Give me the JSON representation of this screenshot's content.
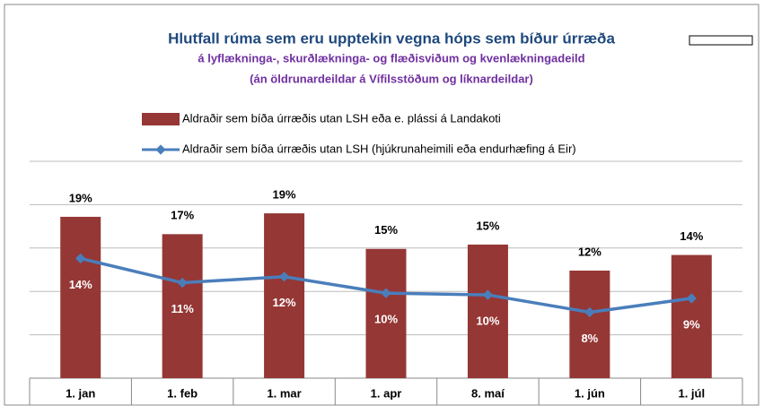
{
  "chart_data": {
    "type": "bar_line",
    "title": "Hlutfall rúma sem eru upptekin  vegna hóps sem bíður úrræða",
    "subtitle": [
      "á lyflækninga-, skurðlækninga- og flæðisviðum og kvenlækningadeild",
      "(án öldrunardeildar  á Vífilsstöðum og líknardeildar)"
    ],
    "categories": [
      "1. jan",
      "1. feb",
      "1. mar",
      "1. apr",
      "8. maí",
      "1. jún",
      "1. júl"
    ],
    "series": [
      {
        "name": "Aldraðir sem bíða úrræðis utan LSH eða e. plássi á Landakoti",
        "type": "bar",
        "color": "#953735",
        "values": [
          18.6,
          16.6,
          19.0,
          14.9,
          15.4,
          12.4,
          14.2
        ],
        "value_labels": [
          "19%",
          "17%",
          "19%",
          "15%",
          "15%",
          "12%",
          "14%"
        ]
      },
      {
        "name": "Aldraðir sem bíða úrræðis utan LSH (hjúkrunaheimili eða endurhæfing á Eir)",
        "type": "line",
        "color": "#4a7ebb",
        "values": [
          13.8,
          11.0,
          11.7,
          9.8,
          9.6,
          7.6,
          9.2
        ],
        "value_labels": [
          "14%",
          "11%",
          "12%",
          "10%",
          "10%",
          "8%",
          "9%"
        ]
      }
    ],
    "ylim": [
      0,
      25
    ],
    "yticks": [
      0,
      5,
      10,
      15,
      20,
      25
    ],
    "grid": true
  }
}
